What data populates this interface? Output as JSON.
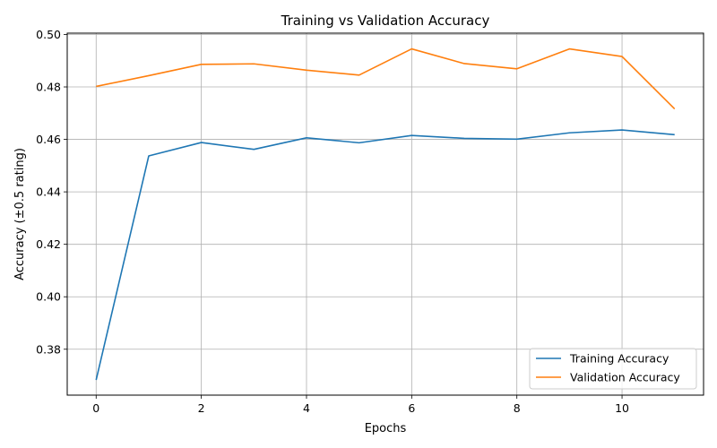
{
  "chart_data": {
    "type": "line",
    "title": "Training vs Validation Accuracy",
    "xlabel": "Epochs",
    "ylabel": "Accuracy (±0.5 rating)",
    "xlim": [
      -0.55,
      11.55
    ],
    "ylim": [
      0.3625,
      0.5005
    ],
    "xticks": [
      0,
      2,
      4,
      6,
      8,
      10
    ],
    "xtick_labels": [
      "0",
      "2",
      "4",
      "6",
      "8",
      "10"
    ],
    "yticks": [
      0.38,
      0.4,
      0.42,
      0.44,
      0.46,
      0.48,
      0.5
    ],
    "ytick_labels": [
      "0.38",
      "0.40",
      "0.42",
      "0.44",
      "0.46",
      "0.48",
      "0.50"
    ],
    "grid": true,
    "legend_position": "lower-right",
    "x": [
      0,
      1,
      2,
      3,
      4,
      5,
      6,
      7,
      8,
      9,
      10,
      11
    ],
    "series": [
      {
        "name": "Training Accuracy",
        "color": "#1f77b4",
        "values": [
          0.3683,
          0.4537,
          0.4588,
          0.4562,
          0.4606,
          0.4587,
          0.4615,
          0.4604,
          0.4601,
          0.4625,
          0.4636,
          0.4618
        ]
      },
      {
        "name": "Validation Accuracy",
        "color": "#ff7f0e",
        "values": [
          0.4802,
          0.4843,
          0.4886,
          0.4888,
          0.4864,
          0.4845,
          0.4945,
          0.4889,
          0.4869,
          0.4945,
          0.4916,
          0.4716
        ]
      }
    ]
  }
}
